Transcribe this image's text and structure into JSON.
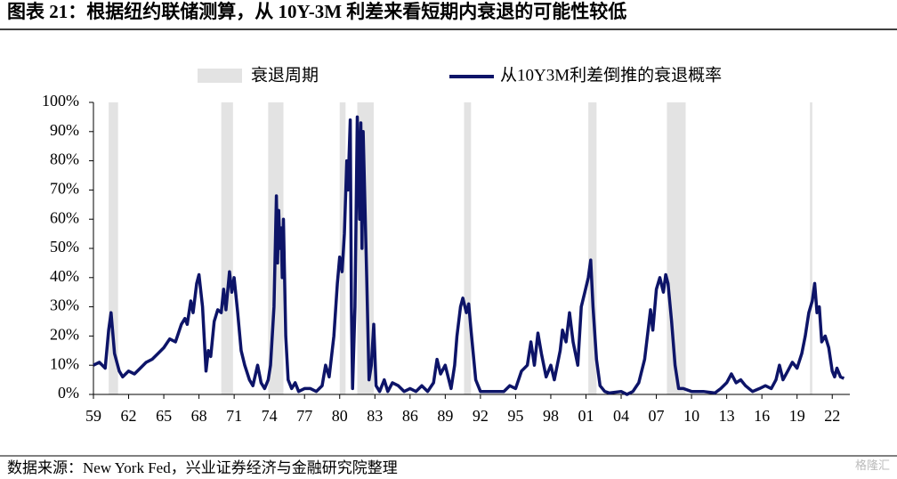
{
  "chart_data": {
    "type": "line",
    "title": "图表 21：根据纽约联储测算，从 10Y-3M 利差来看短期内衰退的可能性较低",
    "source": "数据来源：New York Fed，兴业证券经济与金融研究院整理",
    "watermark": "格隆汇",
    "xlim": [
      1959,
      2023.5
    ],
    "xticks": [
      {
        "value": 1959,
        "label": "59"
      },
      {
        "value": 1962,
        "label": "62"
      },
      {
        "value": 1965,
        "label": "65"
      },
      {
        "value": 1968,
        "label": "68"
      },
      {
        "value": 1971,
        "label": "71"
      },
      {
        "value": 1974,
        "label": "74"
      },
      {
        "value": 1977,
        "label": "77"
      },
      {
        "value": 1980,
        "label": "80"
      },
      {
        "value": 1983,
        "label": "83"
      },
      {
        "value": 1986,
        "label": "86"
      },
      {
        "value": 1989,
        "label": "89"
      },
      {
        "value": 1992,
        "label": "92"
      },
      {
        "value": 1995,
        "label": "95"
      },
      {
        "value": 1998,
        "label": "98"
      },
      {
        "value": 2001,
        "label": "01"
      },
      {
        "value": 2004,
        "label": "04"
      },
      {
        "value": 2007,
        "label": "07"
      },
      {
        "value": 2010,
        "label": "10"
      },
      {
        "value": 2013,
        "label": "13"
      },
      {
        "value": 2016,
        "label": "16"
      },
      {
        "value": 2019,
        "label": "19"
      },
      {
        "value": 2022,
        "label": "22"
      }
    ],
    "ylim": [
      0,
      100
    ],
    "yticks": [
      {
        "value": 0,
        "label": "0%"
      },
      {
        "value": 10,
        "label": "10%"
      },
      {
        "value": 20,
        "label": "20%"
      },
      {
        "value": 30,
        "label": "30%"
      },
      {
        "value": 40,
        "label": "40%"
      },
      {
        "value": 50,
        "label": "50%"
      },
      {
        "value": 60,
        "label": "60%"
      },
      {
        "value": 70,
        "label": "70%"
      },
      {
        "value": 80,
        "label": "80%"
      },
      {
        "value": 90,
        "label": "90%"
      },
      {
        "value": 100,
        "label": "100%"
      }
    ],
    "shading": {
      "name": "衰退周期",
      "color": "#e3e3e3",
      "periods": [
        [
          1960.3,
          1961.1
        ],
        [
          1969.9,
          1970.9
        ],
        [
          1973.9,
          1975.2
        ],
        [
          1980.0,
          1980.5
        ],
        [
          1981.5,
          1982.9
        ],
        [
          1990.6,
          1991.2
        ],
        [
          2001.2,
          2001.9
        ],
        [
          2007.9,
          2009.5
        ],
        [
          2020.1,
          2020.3
        ]
      ]
    },
    "series": [
      {
        "name": "从10Y3M利差倒推的衰退概率",
        "color": "#0d1468",
        "x": [
          1959.0,
          1959.5,
          1960.0,
          1960.3,
          1960.5,
          1960.8,
          1961.2,
          1961.5,
          1962.0,
          1962.5,
          1963.0,
          1963.5,
          1964.0,
          1964.5,
          1965.0,
          1965.5,
          1966.0,
          1966.5,
          1966.8,
          1967.0,
          1967.3,
          1967.5,
          1967.8,
          1968.0,
          1968.3,
          1968.6,
          1968.8,
          1969.0,
          1969.3,
          1969.6,
          1969.9,
          1970.1,
          1970.3,
          1970.6,
          1970.8,
          1971.0,
          1971.3,
          1971.6,
          1971.9,
          1972.3,
          1972.6,
          1973.0,
          1973.3,
          1973.6,
          1973.9,
          1974.1,
          1974.4,
          1974.6,
          1974.7,
          1974.8,
          1974.9,
          1975.0,
          1975.1,
          1975.2,
          1975.4,
          1975.6,
          1975.9,
          1976.2,
          1976.5,
          1977.0,
          1977.5,
          1978.0,
          1978.5,
          1978.8,
          1979.1,
          1979.5,
          1979.8,
          1980.0,
          1980.2,
          1980.4,
          1980.6,
          1980.7,
          1980.9,
          1981.0,
          1981.1,
          1981.3,
          1981.5,
          1981.7,
          1981.8,
          1981.9,
          1982.0,
          1982.3,
          1982.5,
          1982.7,
          1982.9,
          1983.1,
          1983.4,
          1983.8,
          1984.1,
          1984.5,
          1985.0,
          1985.5,
          1986.0,
          1986.5,
          1987.0,
          1987.5,
          1988.0,
          1988.3,
          1988.6,
          1989.0,
          1989.5,
          1989.8,
          1990.0,
          1990.3,
          1990.5,
          1990.8,
          1991.0,
          1991.2,
          1991.6,
          1992.0,
          1993.0,
          1994.0,
          1994.5,
          1995.0,
          1995.5,
          1996.0,
          1996.3,
          1996.6,
          1996.9,
          1997.2,
          1997.6,
          1998.0,
          1998.3,
          1998.8,
          1999.0,
          1999.3,
          1999.6,
          1999.9,
          2000.3,
          2000.6,
          2000.9,
          2001.2,
          2001.4,
          2001.6,
          2001.9,
          2002.2,
          2002.6,
          2003.0,
          2004.0,
          2004.5,
          2005.0,
          2005.5,
          2006.0,
          2006.3,
          2006.5,
          2006.7,
          2007.0,
          2007.3,
          2007.6,
          2007.8,
          2008.0,
          2008.3,
          2008.6,
          2008.9,
          2009.3,
          2010.0,
          2011.0,
          2012.0,
          2012.5,
          2013.0,
          2013.4,
          2013.8,
          2014.2,
          2014.6,
          2015.2,
          2015.8,
          2016.3,
          2016.8,
          2017.2,
          2017.5,
          2017.8,
          2018.2,
          2018.6,
          2019.0,
          2019.4,
          2019.7,
          2020.0,
          2020.3,
          2020.5,
          2020.7,
          2020.9,
          2021.1,
          2021.4,
          2021.7,
          2022.0,
          2022.2,
          2022.4,
          2022.7,
          2023.0
        ],
        "values": [
          10,
          11,
          9,
          22,
          28,
          14,
          8,
          6,
          8,
          7,
          9,
          11,
          12,
          14,
          16,
          19,
          18,
          24,
          26,
          24,
          32,
          28,
          38,
          41,
          30,
          8,
          15,
          13,
          25,
          29,
          28,
          36,
          29,
          42,
          35,
          40,
          28,
          15,
          10,
          5,
          3,
          10,
          4,
          2,
          5,
          10,
          30,
          68,
          45,
          63,
          50,
          57,
          40,
          60,
          20,
          5,
          2,
          4,
          1,
          2,
          2,
          1,
          3,
          10,
          6,
          20,
          38,
          47,
          42,
          55,
          80,
          70,
          94,
          30,
          2,
          30,
          95,
          60,
          93,
          50,
          90,
          40,
          5,
          10,
          24,
          3,
          1,
          5,
          1,
          4,
          3,
          1,
          2,
          1,
          3,
          1,
          4,
          12,
          7,
          10,
          2,
          10,
          20,
          30,
          33,
          28,
          31,
          22,
          5,
          1,
          1,
          1,
          3,
          2,
          8,
          10,
          18,
          10,
          21,
          14,
          6,
          10,
          5,
          15,
          22,
          18,
          28,
          18,
          10,
          30,
          35,
          40,
          46,
          30,
          12,
          3,
          1,
          0.5,
          1,
          0,
          1,
          4,
          12,
          22,
          29,
          22,
          36,
          40,
          35,
          41,
          38,
          25,
          10,
          2,
          2,
          1,
          1,
          0.5,
          2,
          4,
          7,
          4,
          5,
          3,
          1,
          2,
          3,
          2,
          5,
          10,
          5,
          8,
          11,
          9,
          14,
          20,
          28,
          32,
          38,
          28,
          30,
          18,
          20,
          16,
          8,
          6,
          9,
          6,
          5.5
        ]
      }
    ]
  }
}
